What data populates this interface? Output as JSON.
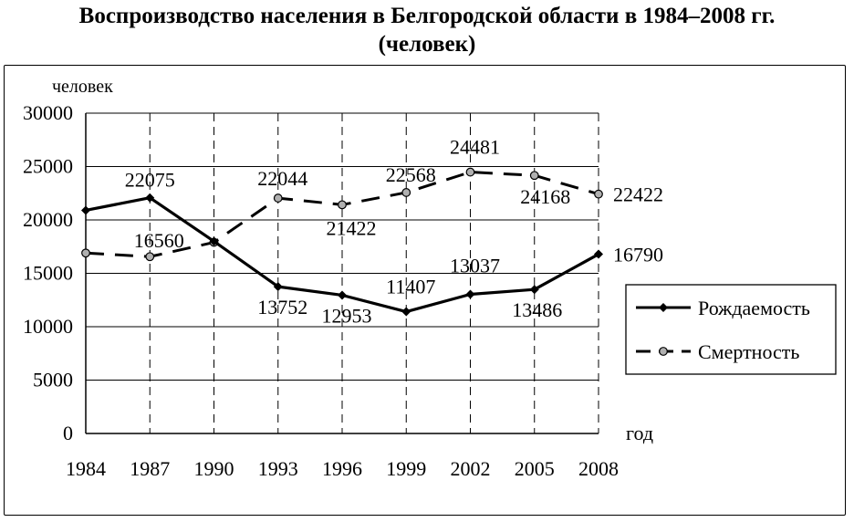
{
  "chart_data": {
    "type": "line",
    "title": "Воспроизводство населения в Белгородской области в 1984–2008 гг.",
    "subtitle": "(человек)",
    "ylabel": "человек",
    "xlabel": "год",
    "categories": [
      "1984",
      "1987",
      "1990",
      "1993",
      "1996",
      "1999",
      "2002",
      "2005",
      "2008"
    ],
    "ylim": [
      0,
      30000
    ],
    "yticks": [
      0,
      5000,
      10000,
      15000,
      20000,
      25000,
      30000
    ],
    "grid": "horizontal solid, vertical dashed",
    "legend_position": "right",
    "series": [
      {
        "name": "Рождаемость",
        "style": "solid",
        "marker": "diamond",
        "values": [
          20900,
          22075,
          18000,
          13752,
          12953,
          11407,
          13037,
          13486,
          16790
        ],
        "labels": [
          "",
          "22075",
          "",
          "13752",
          "12953",
          "11407",
          "13037",
          "13486",
          "16790"
        ]
      },
      {
        "name": "Смертность",
        "style": "dashed",
        "marker": "circle",
        "values": [
          16900,
          16560,
          17900,
          22044,
          21422,
          22568,
          24481,
          24168,
          22422
        ],
        "labels": [
          "",
          "16560",
          "",
          "22044",
          "21422",
          "22568",
          "24481",
          "24168",
          "22422"
        ]
      }
    ]
  }
}
